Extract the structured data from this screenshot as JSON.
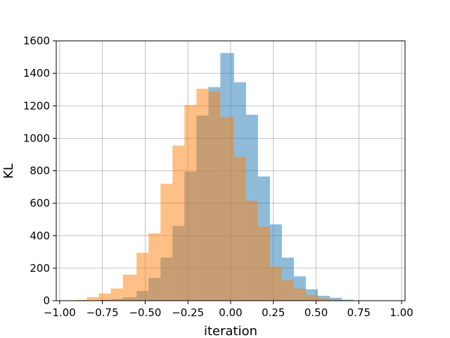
{
  "chart_data": {
    "type": "histogram",
    "title": "",
    "xlabel": "iteration",
    "ylabel": "KL",
    "xlim": [
      -1.02,
      1.02
    ],
    "ylim": [
      0,
      1600
    ],
    "xticks": [
      "−1.00",
      "−0.75",
      "−0.50",
      "−0.25",
      "0.00",
      "0.25",
      "0.50",
      "0.75",
      "1.00"
    ],
    "xtick_values": [
      -1.0,
      -0.75,
      -0.5,
      -0.25,
      0.0,
      0.25,
      0.5,
      0.75,
      1.0
    ],
    "yticks": [
      "0",
      "200",
      "400",
      "600",
      "800",
      "1000",
      "1200",
      "1400",
      "1600"
    ],
    "ytick_values": [
      0,
      200,
      400,
      600,
      800,
      1000,
      1200,
      1400,
      1600
    ],
    "grid": true,
    "series": [
      {
        "color": "#1f77b4",
        "alpha": 0.5,
        "bins": [
          [
            -0.84,
            -0.77,
            2
          ],
          [
            -0.77,
            -0.7,
            5
          ],
          [
            -0.7,
            -0.63,
            10
          ],
          [
            -0.63,
            -0.55,
            20
          ],
          [
            -0.55,
            -0.48,
            60
          ],
          [
            -0.48,
            -0.41,
            140
          ],
          [
            -0.41,
            -0.34,
            265
          ],
          [
            -0.34,
            -0.27,
            460
          ],
          [
            -0.27,
            -0.2,
            795
          ],
          [
            -0.2,
            -0.13,
            1140
          ],
          [
            -0.13,
            -0.06,
            1315
          ],
          [
            -0.06,
            0.02,
            1525
          ],
          [
            0.02,
            0.09,
            1345
          ],
          [
            0.09,
            0.16,
            1145
          ],
          [
            0.16,
            0.23,
            765
          ],
          [
            0.23,
            0.3,
            470
          ],
          [
            0.3,
            0.37,
            265
          ],
          [
            0.37,
            0.44,
            150
          ],
          [
            0.44,
            0.51,
            70
          ],
          [
            0.51,
            0.58,
            30
          ],
          [
            0.58,
            0.65,
            18
          ],
          [
            0.65,
            0.72,
            6
          ]
        ]
      },
      {
        "color": "#ff7f0e",
        "alpha": 0.5,
        "bins": [
          [
            -0.91,
            -0.84,
            5
          ],
          [
            -0.84,
            -0.77,
            22
          ],
          [
            -0.77,
            -0.7,
            45
          ],
          [
            -0.7,
            -0.63,
            75
          ],
          [
            -0.63,
            -0.55,
            160
          ],
          [
            -0.55,
            -0.48,
            295
          ],
          [
            -0.48,
            -0.41,
            415
          ],
          [
            -0.41,
            -0.34,
            720
          ],
          [
            -0.34,
            -0.27,
            955
          ],
          [
            -0.27,
            -0.2,
            1205
          ],
          [
            -0.2,
            -0.13,
            1305
          ],
          [
            -0.13,
            -0.06,
            1290
          ],
          [
            -0.06,
            0.02,
            1130
          ],
          [
            0.02,
            0.09,
            885
          ],
          [
            0.09,
            0.16,
            615
          ],
          [
            0.16,
            0.23,
            455
          ],
          [
            0.23,
            0.3,
            210
          ],
          [
            0.3,
            0.37,
            125
          ],
          [
            0.37,
            0.44,
            75
          ],
          [
            0.44,
            0.51,
            35
          ],
          [
            0.51,
            0.58,
            15
          ],
          [
            0.58,
            0.65,
            5
          ]
        ]
      }
    ]
  }
}
